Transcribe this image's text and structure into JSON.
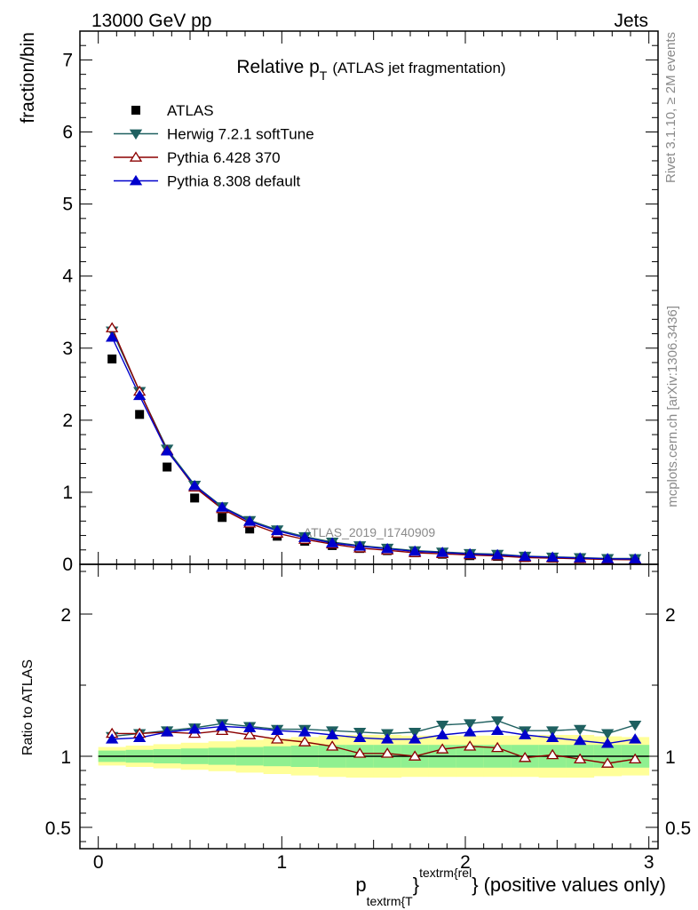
{
  "header": {
    "energy_label": "13000 GeV pp",
    "process_label": "Jets"
  },
  "side_text": {
    "rivet": "Rivet 3.1.10, ≥ 2M events",
    "mcplots": "mcplots.cern.ch [arXiv:1306.3436]"
  },
  "colors": {
    "atlas": "#000000",
    "herwig": "#1f6060",
    "pythia6": "#8b0000",
    "pythia8": "#0000cc",
    "band_inner": "#90f090",
    "band_outer": "#ffff99"
  },
  "chart_data": [
    {
      "type": "line",
      "title": "Relative p",
      "title_subscript": "T",
      "title_suffix": "(ATLAS jet fragmentation)",
      "ylabel": "fraction/bin",
      "xlim": [
        -0.1,
        3.05
      ],
      "ylim": [
        0,
        7.4
      ],
      "yticks": [
        "0",
        "1",
        "2",
        "3",
        "4",
        "5",
        "6",
        "7"
      ],
      "watermark": "ATLAS_2019_I1740909",
      "x": [
        0.075,
        0.225,
        0.375,
        0.525,
        0.675,
        0.825,
        0.975,
        1.125,
        1.275,
        1.425,
        1.575,
        1.725,
        1.875,
        2.025,
        2.175,
        2.325,
        2.475,
        2.625,
        2.775,
        2.925
      ],
      "series": [
        {
          "name": "ATLAS",
          "key": "atlas",
          "marker": "square",
          "values": [
            2.85,
            2.08,
            1.35,
            0.92,
            0.65,
            0.49,
            0.39,
            0.32,
            0.26,
            0.22,
            0.19,
            0.16,
            0.14,
            0.12,
            0.11,
            0.095,
            0.085,
            0.078,
            0.07,
            0.064
          ]
        },
        {
          "name": "Herwig 7.2.1 softTune",
          "key": "herwig",
          "marker": "triangle-down",
          "values": [
            3.24,
            2.4,
            1.6,
            1.1,
            0.8,
            0.61,
            0.48,
            0.385,
            0.31,
            0.26,
            0.225,
            0.19,
            0.172,
            0.152,
            0.14,
            0.114,
            0.102,
            0.094,
            0.082,
            0.08
          ]
        },
        {
          "name": "Pythia 6.428 370",
          "key": "pythia6",
          "marker": "triangle-up-open",
          "values": [
            3.28,
            2.4,
            1.58,
            1.07,
            0.77,
            0.57,
            0.43,
            0.345,
            0.28,
            0.225,
            0.195,
            0.16,
            0.146,
            0.13,
            0.116,
            0.094,
            0.086,
            0.077,
            0.067,
            0.063
          ]
        },
        {
          "name": "Pythia 8.308 default",
          "key": "pythia8",
          "marker": "triangle-up",
          "values": [
            3.15,
            2.34,
            1.57,
            1.09,
            0.79,
            0.595,
            0.465,
            0.37,
            0.295,
            0.25,
            0.215,
            0.18,
            0.163,
            0.144,
            0.131,
            0.108,
            0.097,
            0.087,
            0.077,
            0.073
          ]
        }
      ]
    },
    {
      "type": "line",
      "title": "",
      "ylabel": "Ratio to ATLAS",
      "xlabel": "p",
      "xlabel_sub": "textrm{T",
      "xlabel_sup": "textrm{rel",
      "xlabel_brace": "}",
      "xlabel_suffix": "(positive values only)",
      "xlim": [
        -0.1,
        3.05
      ],
      "ylim": [
        0.35,
        2.35
      ],
      "yticks": [
        "0.5",
        "1",
        "2"
      ],
      "xticks": [
        "0",
        "1",
        "2",
        "3"
      ],
      "x": [
        0.075,
        0.225,
        0.375,
        0.525,
        0.675,
        0.825,
        0.975,
        1.125,
        1.275,
        1.425,
        1.575,
        1.725,
        1.875,
        2.025,
        2.175,
        2.325,
        2.475,
        2.625,
        2.775,
        2.925
      ],
      "band_inner": {
        "low": [
          0.96,
          0.955,
          0.95,
          0.945,
          0.94,
          0.935,
          0.93,
          0.925,
          0.92,
          0.92,
          0.92,
          0.92,
          0.92,
          0.92,
          0.92,
          0.92,
          0.92,
          0.92,
          0.92,
          0.92
        ],
        "high": [
          1.04,
          1.045,
          1.05,
          1.055,
          1.06,
          1.065,
          1.07,
          1.075,
          1.08,
          1.08,
          1.08,
          1.08,
          1.08,
          1.08,
          1.08,
          1.08,
          1.08,
          1.08,
          1.08,
          1.08
        ]
      },
      "band_outer": {
        "low": [
          0.935,
          0.925,
          0.915,
          0.905,
          0.895,
          0.885,
          0.875,
          0.865,
          0.855,
          0.85,
          0.85,
          0.855,
          0.855,
          0.855,
          0.855,
          0.855,
          0.85,
          0.85,
          0.86,
          0.865
        ],
        "high": [
          1.065,
          1.075,
          1.085,
          1.095,
          1.105,
          1.115,
          1.125,
          1.135,
          1.145,
          1.15,
          1.15,
          1.145,
          1.145,
          1.145,
          1.145,
          1.145,
          1.15,
          1.15,
          1.14,
          1.135
        ]
      },
      "series": [
        {
          "name": "Herwig 7.2.1 softTune",
          "key": "herwig",
          "marker": "triangle-down",
          "values": [
            1.14,
            1.16,
            1.18,
            1.2,
            1.23,
            1.21,
            1.19,
            1.19,
            1.18,
            1.17,
            1.16,
            1.17,
            1.22,
            1.23,
            1.25,
            1.18,
            1.18,
            1.19,
            1.16,
            1.22
          ]
        },
        {
          "name": "Pythia 6.428 370",
          "key": "pythia6",
          "marker": "triangle-up-open",
          "values": [
            1.16,
            1.16,
            1.17,
            1.16,
            1.18,
            1.15,
            1.12,
            1.1,
            1.07,
            1.02,
            1.02,
            1.0,
            1.05,
            1.07,
            1.06,
            0.99,
            1.01,
            0.98,
            0.95,
            0.98
          ]
        },
        {
          "name": "Pythia 8.308 default",
          "key": "pythia8",
          "marker": "triangle-up",
          "values": [
            1.12,
            1.13,
            1.17,
            1.19,
            1.21,
            1.2,
            1.18,
            1.17,
            1.15,
            1.13,
            1.12,
            1.12,
            1.15,
            1.17,
            1.18,
            1.15,
            1.13,
            1.11,
            1.09,
            1.12
          ]
        }
      ]
    }
  ]
}
